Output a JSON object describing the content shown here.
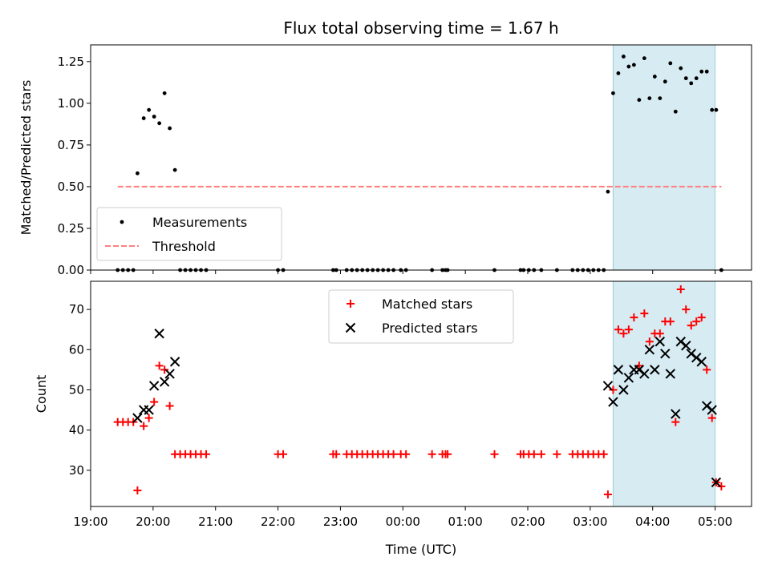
{
  "chart_data": {
    "title": "Flux total observing time = 1.67 h",
    "xlabel": "Time (UTC)",
    "x_unit": "time of day (UTC), night starting 19:00",
    "x_ticks": [
      "19:00",
      "20:00",
      "21:00",
      "22:00",
      "23:00",
      "00:00",
      "01:00",
      "02:00",
      "03:00",
      "04:00",
      "05:00"
    ],
    "x_range": [
      "19:00",
      "05:35"
    ],
    "shaded_interval": [
      "03:22",
      "05:00"
    ],
    "shade_color": "#add8e6",
    "panels": [
      {
        "type": "scatter",
        "ylabel": "Matched/Predicted stars",
        "ylim": [
          0,
          1.35
        ],
        "yticks": [
          "0.00",
          "0.25",
          "0.50",
          "0.75",
          "1.00",
          "1.25"
        ],
        "legend": {
          "placement": "lower-left",
          "entries": [
            "Measurements",
            "Threshold"
          ]
        },
        "series": [
          {
            "name": "Measurements",
            "marker": "dot",
            "color": "#000000",
            "points": [
              [
                "19:26",
                0
              ],
              [
                "19:31",
                0
              ],
              [
                "19:36",
                0
              ],
              [
                "19:41",
                0
              ],
              [
                "19:45",
                0.58
              ],
              [
                "19:51",
                0.91
              ],
              [
                "19:56",
                0.96
              ],
              [
                "20:01",
                0.92
              ],
              [
                "20:06",
                0.88
              ],
              [
                "20:11",
                1.06
              ],
              [
                "20:16",
                0.85
              ],
              [
                "20:21",
                0.6
              ],
              [
                "20:26",
                0
              ],
              [
                "20:31",
                0
              ],
              [
                "20:36",
                0
              ],
              [
                "20:41",
                0
              ],
              [
                "20:46",
                0
              ],
              [
                "20:51",
                0
              ],
              [
                "22:00",
                0
              ],
              [
                "22:05",
                0
              ],
              [
                "22:53",
                0
              ],
              [
                "22:56",
                0
              ],
              [
                "23:06",
                0
              ],
              [
                "23:11",
                0
              ],
              [
                "23:16",
                0
              ],
              [
                "23:21",
                0
              ],
              [
                "23:26",
                0
              ],
              [
                "23:31",
                0
              ],
              [
                "23:36",
                0
              ],
              [
                "23:41",
                0
              ],
              [
                "23:46",
                0
              ],
              [
                "23:51",
                0
              ],
              [
                "23:58",
                0
              ],
              [
                "00:03",
                0
              ],
              [
                "00:28",
                0
              ],
              [
                "00:38",
                0
              ],
              [
                "00:41",
                0
              ],
              [
                "00:43",
                0
              ],
              [
                "01:28",
                0
              ],
              [
                "01:53",
                0
              ],
              [
                "01:56",
                0
              ],
              [
                "02:01",
                0
              ],
              [
                "02:06",
                0
              ],
              [
                "02:13",
                0
              ],
              [
                "02:28",
                0
              ],
              [
                "02:43",
                0
              ],
              [
                "02:48",
                0
              ],
              [
                "02:53",
                0
              ],
              [
                "02:58",
                0
              ],
              [
                "03:03",
                0
              ],
              [
                "03:08",
                0
              ],
              [
                "03:13",
                0
              ],
              [
                "03:17",
                0.47
              ],
              [
                "03:22",
                1.06
              ],
              [
                "03:27",
                1.18
              ],
              [
                "03:32",
                1.28
              ],
              [
                "03:37",
                1.22
              ],
              [
                "03:42",
                1.23
              ],
              [
                "03:47",
                1.02
              ],
              [
                "03:52",
                1.27
              ],
              [
                "03:57",
                1.03
              ],
              [
                "04:02",
                1.16
              ],
              [
                "04:07",
                1.03
              ],
              [
                "04:12",
                1.13
              ],
              [
                "04:17",
                1.24
              ],
              [
                "04:22",
                0.95
              ],
              [
                "04:27",
                1.21
              ],
              [
                "04:32",
                1.15
              ],
              [
                "04:37",
                1.12
              ],
              [
                "04:42",
                1.15
              ],
              [
                "04:47",
                1.19
              ],
              [
                "04:52",
                1.19
              ],
              [
                "04:57",
                0.96
              ],
              [
                "05:01",
                0.96
              ],
              [
                "05:06",
                0
              ]
            ]
          },
          {
            "name": "Threshold",
            "type": "line",
            "style": "dashed",
            "color": "#ff7f7f",
            "value": 0.5,
            "x_span": [
              "19:26",
              "05:06"
            ]
          }
        ]
      },
      {
        "type": "scatter",
        "ylabel": "Count",
        "ylim": [
          21,
          77
        ],
        "yticks": [
          "30",
          "40",
          "50",
          "60",
          "70"
        ],
        "legend": {
          "placement": "top-center",
          "entries": [
            "Matched stars",
            "Predicted stars"
          ]
        },
        "series": [
          {
            "name": "Matched stars",
            "marker": "plus",
            "color": "#ff0000",
            "points": [
              [
                "19:26",
                42
              ],
              [
                "19:31",
                42
              ],
              [
                "19:36",
                42
              ],
              [
                "19:41",
                42
              ],
              [
                "19:45",
                25
              ],
              [
                "19:51",
                41
              ],
              [
                "19:56",
                43
              ],
              [
                "20:01",
                47
              ],
              [
                "20:06",
                56
              ],
              [
                "20:11",
                55
              ],
              [
                "20:16",
                46
              ],
              [
                "20:21",
                34
              ],
              [
                "20:26",
                34
              ],
              [
                "20:31",
                34
              ],
              [
                "20:36",
                34
              ],
              [
                "20:41",
                34
              ],
              [
                "20:46",
                34
              ],
              [
                "20:51",
                34
              ],
              [
                "22:00",
                34
              ],
              [
                "22:05",
                34
              ],
              [
                "22:53",
                34
              ],
              [
                "22:56",
                34
              ],
              [
                "23:06",
                34
              ],
              [
                "23:11",
                34
              ],
              [
                "23:16",
                34
              ],
              [
                "23:21",
                34
              ],
              [
                "23:26",
                34
              ],
              [
                "23:31",
                34
              ],
              [
                "23:36",
                34
              ],
              [
                "23:41",
                34
              ],
              [
                "23:46",
                34
              ],
              [
                "23:51",
                34
              ],
              [
                "23:58",
                34
              ],
              [
                "00:03",
                34
              ],
              [
                "00:28",
                34
              ],
              [
                "00:38",
                34
              ],
              [
                "00:41",
                34
              ],
              [
                "00:43",
                34
              ],
              [
                "01:28",
                34
              ],
              [
                "01:53",
                34
              ],
              [
                "01:56",
                34
              ],
              [
                "02:01",
                34
              ],
              [
                "02:06",
                34
              ],
              [
                "02:13",
                34
              ],
              [
                "02:28",
                34
              ],
              [
                "02:43",
                34
              ],
              [
                "02:48",
                34
              ],
              [
                "02:53",
                34
              ],
              [
                "02:58",
                34
              ],
              [
                "03:03",
                34
              ],
              [
                "03:08",
                34
              ],
              [
                "03:13",
                34
              ],
              [
                "03:17",
                24
              ],
              [
                "03:22",
                50
              ],
              [
                "03:27",
                65
              ],
              [
                "03:32",
                64
              ],
              [
                "03:37",
                65
              ],
              [
                "03:42",
                68
              ],
              [
                "03:47",
                56
              ],
              [
                "03:52",
                69
              ],
              [
                "03:57",
                62
              ],
              [
                "04:02",
                64
              ],
              [
                "04:07",
                64
              ],
              [
                "04:12",
                67
              ],
              [
                "04:17",
                67
              ],
              [
                "04:22",
                42
              ],
              [
                "04:27",
                75
              ],
              [
                "04:32",
                70
              ],
              [
                "04:37",
                66
              ],
              [
                "04:42",
                67
              ],
              [
                "04:47",
                68
              ],
              [
                "04:52",
                55
              ],
              [
                "04:57",
                43
              ],
              [
                "05:01",
                27
              ],
              [
                "05:06",
                26
              ]
            ]
          },
          {
            "name": "Predicted stars",
            "marker": "x",
            "color": "#000000",
            "points": [
              [
                "19:45",
                43
              ],
              [
                "19:51",
                45
              ],
              [
                "19:56",
                45
              ],
              [
                "20:01",
                51
              ],
              [
                "20:06",
                64
              ],
              [
                "20:11",
                52
              ],
              [
                "20:16",
                54
              ],
              [
                "20:21",
                57
              ],
              [
                "03:17",
                51
              ],
              [
                "03:22",
                47
              ],
              [
                "03:27",
                55
              ],
              [
                "03:32",
                50
              ],
              [
                "03:37",
                53
              ],
              [
                "03:42",
                55
              ],
              [
                "03:47",
                55
              ],
              [
                "03:52",
                54
              ],
              [
                "03:57",
                60
              ],
              [
                "04:02",
                55
              ],
              [
                "04:07",
                62
              ],
              [
                "04:12",
                59
              ],
              [
                "04:17",
                54
              ],
              [
                "04:22",
                44
              ],
              [
                "04:27",
                62
              ],
              [
                "04:32",
                61
              ],
              [
                "04:37",
                59
              ],
              [
                "04:42",
                58
              ],
              [
                "04:47",
                57
              ],
              [
                "04:52",
                46
              ],
              [
                "04:57",
                45
              ],
              [
                "05:01",
                27
              ]
            ]
          }
        ]
      }
    ]
  }
}
